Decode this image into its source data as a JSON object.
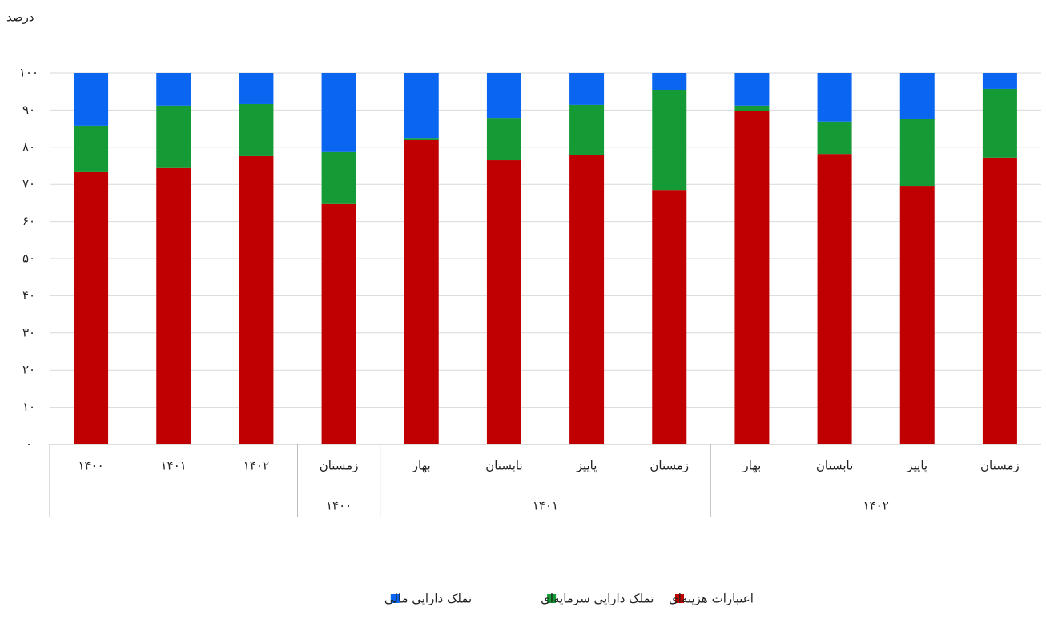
{
  "chart_data": {
    "type": "stacked_bar",
    "y_label": "درصد",
    "categories": [
      "۱۴۰۰",
      "۱۴۰۱",
      "۱۴۰۲",
      "زمستان",
      "بهار",
      "تابستان",
      "پاییز",
      "زمستان",
      "بهار",
      "تابستان",
      "پاییز",
      "زمستان"
    ],
    "groups": [
      {
        "label": null,
        "count": 3
      },
      {
        "label": "۱۴۰۰",
        "count": 1
      },
      {
        "label": "۱۴۰۱",
        "count": 4
      },
      {
        "label": "۱۴۰۲",
        "count": 4
      }
    ],
    "series": [
      {
        "name": "اعتبارات هزینه‌ای",
        "color": "#c00000",
        "values": [
          73.3,
          74.4,
          77.6,
          64.7,
          81.9,
          76.5,
          77.8,
          68.5,
          89.7,
          78.2,
          69.6,
          77.2
        ]
      },
      {
        "name": "تملک دارایی سرمایه‌ای",
        "color": "#149b35",
        "values": [
          12.5,
          16.8,
          14.0,
          14.0,
          0.6,
          11.4,
          13.6,
          26.8,
          1.5,
          8.7,
          18.1,
          18.5
        ]
      },
      {
        "name": "تملک دارایی مالی",
        "color": "#0a66f0",
        "values": [
          14.2,
          8.8,
          8.4,
          21.3,
          17.5,
          12.1,
          8.6,
          4.7,
          8.8,
          13.1,
          12.3,
          4.3
        ]
      }
    ],
    "ylim": [
      0,
      100
    ],
    "yticks": [
      {
        "value": 0,
        "label": "۰"
      },
      {
        "value": 10,
        "label": "۱۰"
      },
      {
        "value": 20,
        "label": "۲۰"
      },
      {
        "value": 30,
        "label": "۳۰"
      },
      {
        "value": 40,
        "label": "۴۰"
      },
      {
        "value": 50,
        "label": "۵۰"
      },
      {
        "value": 60,
        "label": "۶۰"
      },
      {
        "value": 70,
        "label": "۷۰"
      },
      {
        "value": 80,
        "label": "۸۰"
      },
      {
        "value": 90,
        "label": "۹۰"
      },
      {
        "value": 100,
        "label": "۱۰۰"
      }
    ],
    "grid": true,
    "legend": "bottom"
  }
}
